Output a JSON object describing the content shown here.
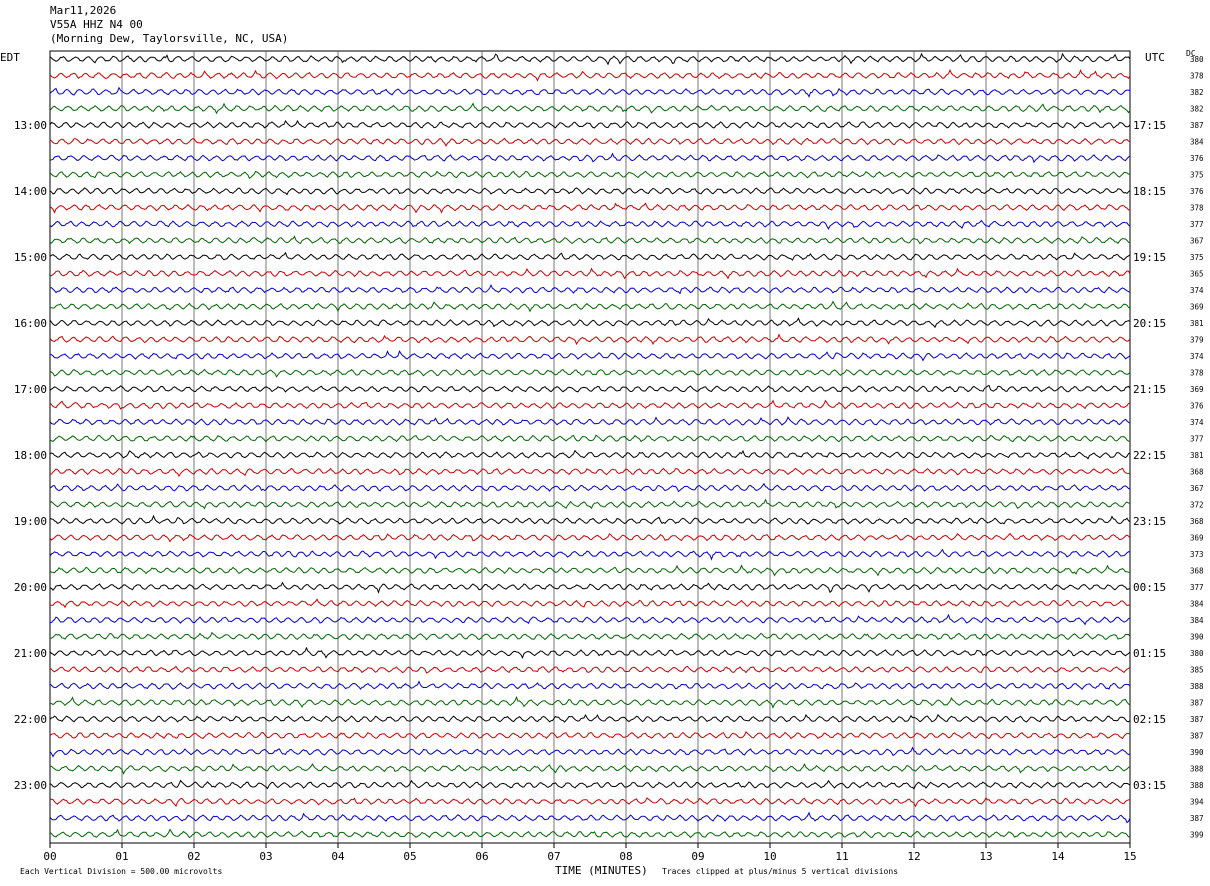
{
  "header": {
    "date": "Mar11,2026",
    "station": "V55A HHZ N4 00",
    "location": "(Morning Dew, Taylorsville, NC, USA)"
  },
  "left_timezone": "EDT",
  "right_timezone": "UTC",
  "dc_label": "DC",
  "footer": {
    "scale_note": "Each Vertical Division =  500.00 microvolts",
    "xlabel": "TIME (MINUTES)",
    "clip_note": "Traces clipped at plus/minus 5 vertical divisions"
  },
  "chart_data": {
    "type": "line",
    "title": "",
    "xlabel": "TIME (MINUTES)",
    "ylabel": "",
    "xlim": [
      0,
      15
    ],
    "x_ticks": [
      "00",
      "01",
      "02",
      "03",
      "04",
      "05",
      "06",
      "07",
      "08",
      "09",
      "10",
      "11",
      "12",
      "13",
      "14",
      "15"
    ],
    "trace_colors": [
      "#000000",
      "#cc0000",
      "#0000cc",
      "#006600"
    ],
    "trace_count": 48,
    "left_hour_labels": [
      {
        "trace_index": 4,
        "label": "13:00"
      },
      {
        "trace_index": 8,
        "label": "14:00"
      },
      {
        "trace_index": 12,
        "label": "15:00"
      },
      {
        "trace_index": 16,
        "label": "16:00"
      },
      {
        "trace_index": 20,
        "label": "17:00"
      },
      {
        "trace_index": 24,
        "label": "18:00"
      },
      {
        "trace_index": 28,
        "label": "19:00"
      },
      {
        "trace_index": 32,
        "label": "20:00"
      },
      {
        "trace_index": 36,
        "label": "21:00"
      },
      {
        "trace_index": 40,
        "label": "22:00"
      },
      {
        "trace_index": 44,
        "label": "23:00"
      }
    ],
    "right_hour_labels": [
      {
        "trace_index": 4,
        "label": "17:15"
      },
      {
        "trace_index": 8,
        "label": "18:15"
      },
      {
        "trace_index": 12,
        "label": "19:15"
      },
      {
        "trace_index": 16,
        "label": "20:15"
      },
      {
        "trace_index": 20,
        "label": "21:15"
      },
      {
        "trace_index": 24,
        "label": "22:15"
      },
      {
        "trace_index": 28,
        "label": "23:15"
      },
      {
        "trace_index": 32,
        "label": "00:15"
      },
      {
        "trace_index": 36,
        "label": "01:15"
      },
      {
        "trace_index": 40,
        "label": "02:15"
      },
      {
        "trace_index": 44,
        "label": "03:15"
      }
    ],
    "dc_offsets": [
      "380",
      "378",
      "382",
      "382",
      "387",
      "384",
      "376",
      "375",
      "376",
      "378",
      "377",
      "367",
      "375",
      "365",
      "374",
      "369",
      "381",
      "379",
      "374",
      "378",
      "369",
      "376",
      "374",
      "377",
      "381",
      "368",
      "367",
      "372",
      "368",
      "369",
      "373",
      "368",
      "377",
      "384",
      "384",
      "390",
      "380",
      "385",
      "388",
      "387",
      "387",
      "387",
      "390",
      "388",
      "388",
      "394",
      "387",
      "399"
    ]
  }
}
